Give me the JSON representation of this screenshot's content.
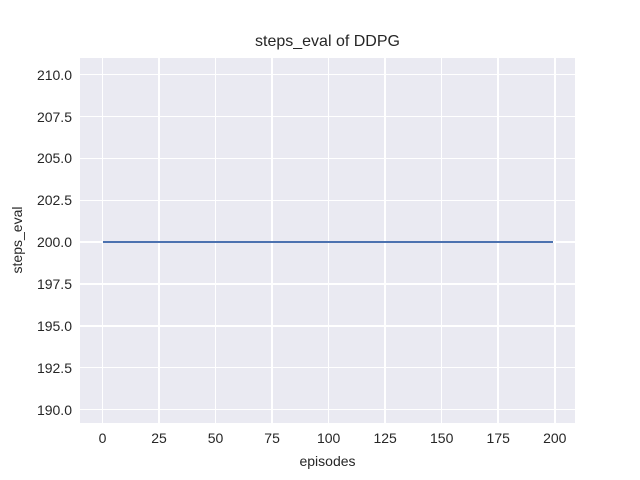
{
  "chart_data": {
    "type": "line",
    "title": "steps_eval of DDPG",
    "xlabel": "episodes",
    "ylabel": "steps_eval",
    "series": [
      {
        "name": "steps_eval",
        "x": [
          0,
          199
        ],
        "y": [
          200,
          200
        ],
        "color": "#4C72B0",
        "note": "constant value 200 for all episodes 0-199"
      }
    ],
    "x_ticks": [
      0,
      25,
      50,
      75,
      100,
      125,
      150,
      175,
      200
    ],
    "y_ticks": [
      190.0,
      192.5,
      195.0,
      197.5,
      200.0,
      202.5,
      205.0,
      207.5,
      210.0
    ],
    "y_tick_labels": [
      "190.0",
      "192.5",
      "195.0",
      "197.5",
      "200.0",
      "202.5",
      "205.0",
      "207.5",
      "210.0"
    ],
    "x_tick_labels": [
      "0",
      "25",
      "50",
      "75",
      "100",
      "125",
      "150",
      "175",
      "200"
    ],
    "xlim": [
      -9.95,
      208.95
    ],
    "ylim": [
      189.2,
      211.0
    ],
    "grid": true,
    "legend": "none",
    "plot_background": "#EAEAF2",
    "grid_color": "#FFFFFF",
    "text_color": "#262626"
  }
}
